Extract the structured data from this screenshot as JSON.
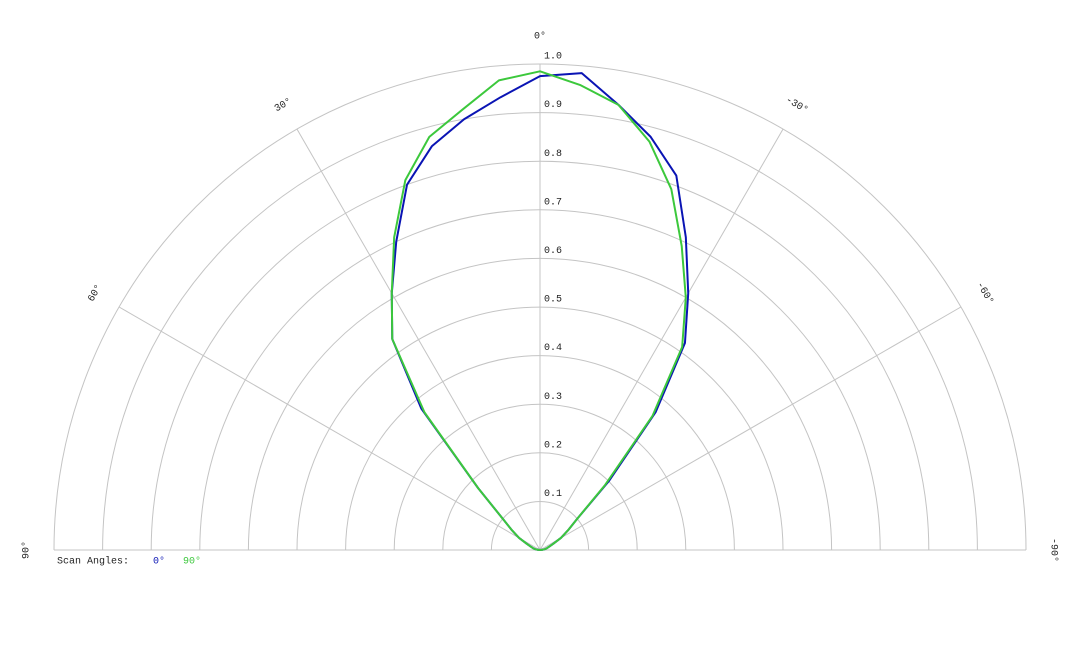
{
  "chart_data": {
    "type": "polar",
    "x": [
      -90,
      -85,
      -80,
      -75,
      -70,
      -65,
      -60,
      -55,
      -50,
      -45,
      -40,
      -35,
      -30,
      -25,
      -20,
      -15,
      -10,
      -5,
      0,
      5,
      10,
      15,
      20,
      25,
      30,
      35,
      40,
      45,
      50,
      55,
      60,
      65,
      70,
      75,
      80,
      85,
      90
    ],
    "series": [
      {
        "name": "0°",
        "color": "#0a14b4",
        "values": [
          0,
          0.005,
          0.01,
          0.015,
          0.02,
          0.03,
          0.05,
          0.07,
          0.1,
          0.2,
          0.37,
          0.52,
          0.61,
          0.71,
          0.82,
          0.88,
          0.93,
          0.985,
          0.975,
          0.935,
          0.9,
          0.86,
          0.8,
          0.7,
          0.61,
          0.53,
          0.38,
          0.18,
          0.1,
          0.07,
          0.05,
          0.03,
          0.02,
          0.015,
          0.01,
          0.005,
          0
        ]
      },
      {
        "name": "90°",
        "color": "#3cc83c",
        "values": [
          0,
          0.005,
          0.01,
          0.015,
          0.02,
          0.03,
          0.05,
          0.07,
          0.1,
          0.19,
          0.36,
          0.51,
          0.6,
          0.69,
          0.79,
          0.87,
          0.93,
          0.96,
          0.985,
          0.97,
          0.92,
          0.88,
          0.81,
          0.71,
          0.61,
          0.53,
          0.37,
          0.18,
          0.1,
          0.07,
          0.05,
          0.03,
          0.02,
          0.015,
          0.01,
          0.005,
          0
        ]
      }
    ],
    "legend_title": "Scan Angles:",
    "xlim": [
      -90,
      90
    ],
    "xticks": [
      {
        "value": 90,
        "label": "90°"
      },
      {
        "value": 60,
        "label": "60°"
      },
      {
        "value": 30,
        "label": "30°"
      },
      {
        "value": 0,
        "label": "0°"
      },
      {
        "value": -30,
        "label": "-30°"
      },
      {
        "value": -60,
        "label": "-60°"
      },
      {
        "value": -90,
        "label": "-90°"
      }
    ],
    "ylim": [
      0,
      1
    ],
    "yticks": [
      0.1,
      0.2,
      0.3,
      0.4,
      0.5,
      0.6,
      0.7,
      0.8,
      0.9,
      {
        "value": 1,
        "label": "1.0"
      }
    ],
    "grid": true
  }
}
